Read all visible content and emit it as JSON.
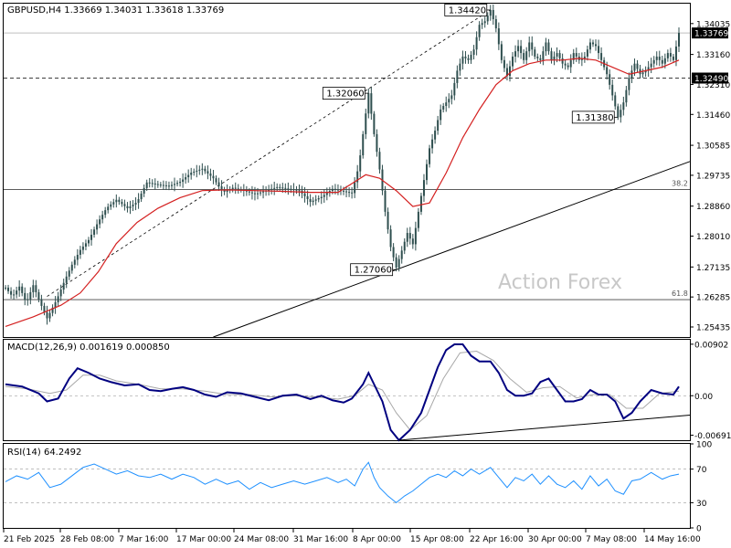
{
  "symbol_header": "GBPUSD,H4  1.33669 1.34031 1.33618 1.33769",
  "watermark": "Action Forex",
  "price_axis": {
    "ticks": [
      "1.34035",
      "1.33160",
      "1.32310",
      "1.31460",
      "1.30585",
      "1.29735",
      "1.28860",
      "1.28010",
      "1.27135",
      "1.26285",
      "1.25435"
    ],
    "tick_values": [
      1.34035,
      1.3316,
      1.3231,
      1.3146,
      1.30585,
      1.29735,
      1.2886,
      1.2801,
      1.27135,
      1.26285,
      1.25435
    ],
    "current_price": "1.33769",
    "current_value": 1.33769,
    "level_label": "1.32490",
    "level_value": 1.3249,
    "range": [
      1.2515,
      1.346
    ]
  },
  "annotations": {
    "high_1": {
      "text": "1.34420",
      "value": 1.3442
    },
    "high_2": {
      "text": "1.32060",
      "value": 1.3206
    },
    "low_1": {
      "text": "1.31380",
      "value": 1.3138
    },
    "low_2": {
      "text": "1.27060",
      "value": 1.2706
    }
  },
  "fib": {
    "fib_382": {
      "label": "38.2",
      "value": 1.2933
    },
    "fib_618": {
      "label": "61.8",
      "value": 1.2621
    }
  },
  "macd_panel": {
    "title": "MACD(12,26,9) 0.001619 0.000850",
    "ticks": [
      "0.00902",
      "0.00",
      "-0.006915"
    ],
    "tick_values": [
      0.00902,
      0.0,
      -0.006915
    ],
    "range": [
      -0.0078,
      0.0098
    ]
  },
  "rsi_panel": {
    "title": "RSI(14) 64.2492",
    "ticks": [
      "100",
      "70",
      "30",
      "0"
    ],
    "tick_values": [
      100,
      70,
      30,
      0
    ]
  },
  "time_axis": {
    "labels": [
      "21 Feb 2025",
      "28 Feb 08:00",
      "7 Mar 16:00",
      "17 Mar 00:00",
      "24 Mar 08:00",
      "31 Mar 16:00",
      "8 Apr 00:00",
      "15 Apr 08:00",
      "22 Apr 16:00",
      "30 Apr 00:00",
      "7 May 08:00",
      "14 May 16:00"
    ]
  },
  "colors": {
    "candles": "#2f4f4f",
    "moving_average": "#d42020",
    "macd_line": "#000080",
    "signal_line": "#a8a8a8",
    "rsi_line": "#1e90ff",
    "trendline": "#000000",
    "watermark": "#c8c8c8"
  },
  "chart_data": {
    "type": "candlestick",
    "symbol": "GBPUSD",
    "timeframe": "H4",
    "ohlc": {
      "open": 1.33669,
      "high": 1.34031,
      "low": 1.33618,
      "close": 1.33769
    },
    "x": [
      "21 Feb 2025",
      "28 Feb 08:00",
      "7 Mar 16:00",
      "17 Mar 00:00",
      "24 Mar 08:00",
      "31 Mar 16:00",
      "8 Apr 00:00",
      "15 Apr 08:00",
      "22 Apr 16:00",
      "30 Apr 00:00",
      "7 May 08:00",
      "14 May 16:00"
    ],
    "price_path": [
      [
        0,
        1.2655
      ],
      [
        5,
        1.263
      ],
      [
        10,
        1.2658
      ],
      [
        15,
        1.2612
      ],
      [
        20,
        1.2662
      ],
      [
        25,
        1.2612
      ],
      [
        30,
        1.2568
      ],
      [
        37,
        1.2621
      ],
      [
        43,
        1.2678
      ],
      [
        48,
        1.272
      ],
      [
        54,
        1.2762
      ],
      [
        60,
        1.279
      ],
      [
        67,
        1.2842
      ],
      [
        73,
        1.2881
      ],
      [
        80,
        1.2904
      ],
      [
        88,
        1.288
      ],
      [
        95,
        1.2898
      ],
      [
        102,
        1.2953
      ],
      [
        110,
        1.2947
      ],
      [
        118,
        1.2943
      ],
      [
        126,
        1.2955
      ],
      [
        134,
        1.2981
      ],
      [
        142,
        1.2992
      ],
      [
        150,
        1.2965
      ],
      [
        157,
        1.2925
      ],
      [
        164,
        1.2938
      ],
      [
        172,
        1.293
      ],
      [
        180,
        1.292
      ],
      [
        188,
        1.293
      ],
      [
        196,
        1.294
      ],
      [
        204,
        1.2935
      ],
      [
        212,
        1.293
      ],
      [
        220,
        1.2898
      ],
      [
        228,
        1.2912
      ],
      [
        236,
        1.2935
      ],
      [
        244,
        1.2928
      ],
      [
        250,
        1.2923
      ],
      [
        255,
        1.3
      ],
      [
        259,
        1.312
      ],
      [
        262,
        1.3206
      ],
      [
        266,
        1.309
      ],
      [
        270,
        1.299
      ],
      [
        274,
        1.287
      ],
      [
        278,
        1.277
      ],
      [
        282,
        1.2712
      ],
      [
        286,
        1.276
      ],
      [
        290,
        1.281
      ],
      [
        294,
        1.2778
      ],
      [
        298,
        1.287
      ],
      [
        302,
        1.296
      ],
      [
        306,
        1.305
      ],
      [
        310,
        1.31
      ],
      [
        314,
        1.316
      ],
      [
        318,
        1.318
      ],
      [
        322,
        1.32
      ],
      [
        326,
        1.327
      ],
      [
        330,
        1.331
      ],
      [
        334,
        1.33
      ],
      [
        338,
        1.333
      ],
      [
        342,
        1.34
      ],
      [
        346,
        1.341
      ],
      [
        350,
        1.3442
      ],
      [
        354,
        1.339
      ],
      [
        358,
        1.33
      ],
      [
        362,
        1.3255
      ],
      [
        366,
        1.331
      ],
      [
        370,
        1.334
      ],
      [
        374,
        1.33
      ],
      [
        378,
        1.335
      ],
      [
        382,
        1.331
      ],
      [
        386,
        1.33
      ],
      [
        390,
        1.335
      ],
      [
        394,
        1.33
      ],
      [
        398,
        1.332
      ],
      [
        402,
        1.329
      ],
      [
        406,
        1.328
      ],
      [
        410,
        1.332
      ],
      [
        414,
        1.33
      ],
      [
        418,
        1.331
      ],
      [
        422,
        1.335
      ],
      [
        426,
        1.334
      ],
      [
        430,
        1.33
      ],
      [
        434,
        1.326
      ],
      [
        438,
        1.32
      ],
      [
        442,
        1.3138
      ],
      [
        446,
        1.318
      ],
      [
        450,
        1.325
      ],
      [
        454,
        1.329
      ],
      [
        458,
        1.326
      ],
      [
        462,
        1.327
      ],
      [
        466,
        1.329
      ],
      [
        470,
        1.331
      ],
      [
        474,
        1.329
      ],
      [
        478,
        1.332
      ],
      [
        482,
        1.33
      ],
      [
        486,
        1.3377
      ]
    ],
    "ma_path": [
      [
        0,
        1.2545
      ],
      [
        20,
        1.2572
      ],
      [
        40,
        1.2605
      ],
      [
        54,
        1.264
      ],
      [
        67,
        1.27
      ],
      [
        80,
        1.278
      ],
      [
        95,
        1.284
      ],
      [
        110,
        1.288
      ],
      [
        126,
        1.291
      ],
      [
        142,
        1.293
      ],
      [
        160,
        1.2932
      ],
      [
        180,
        1.293
      ],
      [
        200,
        1.2928
      ],
      [
        220,
        1.2925
      ],
      [
        240,
        1.2925
      ],
      [
        250,
        1.295
      ],
      [
        260,
        1.2975
      ],
      [
        270,
        1.2965
      ],
      [
        282,
        1.293
      ],
      [
        294,
        1.2885
      ],
      [
        306,
        1.2895
      ],
      [
        318,
        1.298
      ],
      [
        330,
        1.308
      ],
      [
        342,
        1.316
      ],
      [
        354,
        1.323
      ],
      [
        366,
        1.327
      ],
      [
        378,
        1.329
      ],
      [
        390,
        1.33
      ],
      [
        402,
        1.33
      ],
      [
        414,
        1.3305
      ],
      [
        426,
        1.33
      ],
      [
        438,
        1.328
      ],
      [
        450,
        1.326
      ],
      [
        462,
        1.327
      ],
      [
        474,
        1.328
      ],
      [
        486,
        1.33
      ]
    ],
    "macd": [
      [
        0,
        0.002
      ],
      [
        12,
        0.0016
      ],
      [
        24,
        0.0004
      ],
      [
        30,
        -0.001
      ],
      [
        38,
        -0.0005
      ],
      [
        46,
        0.003
      ],
      [
        52,
        0.0048
      ],
      [
        60,
        0.004
      ],
      [
        68,
        0.003
      ],
      [
        76,
        0.0024
      ],
      [
        86,
        0.0018
      ],
      [
        96,
        0.002
      ],
      [
        104,
        0.001
      ],
      [
        112,
        0.0008
      ],
      [
        120,
        0.0012
      ],
      [
        128,
        0.0015
      ],
      [
        136,
        0.001
      ],
      [
        144,
        0.0002
      ],
      [
        152,
        -0.0002
      ],
      [
        160,
        0.0006
      ],
      [
        170,
        0.0004
      ],
      [
        180,
        -0.0002
      ],
      [
        190,
        -0.0008
      ],
      [
        200,
        0.0
      ],
      [
        210,
        0.0002
      ],
      [
        220,
        -0.0006
      ],
      [
        228,
        0.0
      ],
      [
        236,
        -0.0008
      ],
      [
        244,
        -0.0012
      ],
      [
        250,
        -0.0005
      ],
      [
        258,
        0.002
      ],
      [
        262,
        0.004
      ],
      [
        266,
        0.002
      ],
      [
        272,
        -0.001
      ],
      [
        278,
        -0.006
      ],
      [
        284,
        -0.0078
      ],
      [
        292,
        -0.006
      ],
      [
        300,
        -0.003
      ],
      [
        306,
        0.001
      ],
      [
        312,
        0.005
      ],
      [
        318,
        0.008
      ],
      [
        324,
        0.009
      ],
      [
        330,
        0.009
      ],
      [
        336,
        0.007
      ],
      [
        342,
        0.006
      ],
      [
        350,
        0.006
      ],
      [
        356,
        0.004
      ],
      [
        362,
        0.001
      ],
      [
        368,
        0.0
      ],
      [
        374,
        0.0
      ],
      [
        380,
        0.0004
      ],
      [
        386,
        0.0024
      ],
      [
        392,
        0.003
      ],
      [
        398,
        0.001
      ],
      [
        404,
        -0.001
      ],
      [
        410,
        -0.001
      ],
      [
        416,
        -0.0006
      ],
      [
        422,
        0.001
      ],
      [
        428,
        0.0002
      ],
      [
        434,
        0.0002
      ],
      [
        440,
        -0.001
      ],
      [
        446,
        -0.004
      ],
      [
        452,
        -0.003
      ],
      [
        458,
        -0.001
      ],
      [
        466,
        0.001
      ],
      [
        474,
        0.0004
      ],
      [
        482,
        0.0002
      ],
      [
        486,
        0.0016
      ]
    ],
    "signal": [
      [
        0,
        0.0016
      ],
      [
        16,
        0.0012
      ],
      [
        32,
        0.0004
      ],
      [
        44,
        0.001
      ],
      [
        56,
        0.0036
      ],
      [
        68,
        0.0036
      ],
      [
        80,
        0.0026
      ],
      [
        96,
        0.002
      ],
      [
        112,
        0.0012
      ],
      [
        128,
        0.0012
      ],
      [
        144,
        0.0008
      ],
      [
        160,
        0.0002
      ],
      [
        176,
        0.0002
      ],
      [
        192,
        -0.0002
      ],
      [
        208,
        0.0
      ],
      [
        224,
        -0.0002
      ],
      [
        240,
        -0.0006
      ],
      [
        252,
        0.0
      ],
      [
        262,
        0.002
      ],
      [
        272,
        0.001
      ],
      [
        282,
        -0.003
      ],
      [
        292,
        -0.006
      ],
      [
        304,
        -0.0035
      ],
      [
        316,
        0.003
      ],
      [
        328,
        0.0075
      ],
      [
        340,
        0.0078
      ],
      [
        352,
        0.0062
      ],
      [
        364,
        0.003
      ],
      [
        376,
        0.0006
      ],
      [
        388,
        0.0014
      ],
      [
        400,
        0.0016
      ],
      [
        412,
        -0.0004
      ],
      [
        424,
        0.0002
      ],
      [
        436,
        0.0002
      ],
      [
        448,
        -0.0022
      ],
      [
        460,
        -0.0022
      ],
      [
        472,
        0.0004
      ],
      [
        486,
        0.0008
      ]
    ],
    "rsi": [
      [
        0,
        55
      ],
      [
        8,
        62
      ],
      [
        16,
        58
      ],
      [
        24,
        66
      ],
      [
        32,
        48
      ],
      [
        40,
        52
      ],
      [
        48,
        62
      ],
      [
        56,
        72
      ],
      [
        64,
        76
      ],
      [
        72,
        70
      ],
      [
        80,
        64
      ],
      [
        88,
        68
      ],
      [
        96,
        62
      ],
      [
        104,
        60
      ],
      [
        112,
        64
      ],
      [
        120,
        58
      ],
      [
        128,
        64
      ],
      [
        136,
        60
      ],
      [
        144,
        52
      ],
      [
        152,
        58
      ],
      [
        160,
        52
      ],
      [
        168,
        56
      ],
      [
        176,
        46
      ],
      [
        184,
        54
      ],
      [
        192,
        48
      ],
      [
        200,
        52
      ],
      [
        208,
        56
      ],
      [
        216,
        52
      ],
      [
        224,
        56
      ],
      [
        232,
        60
      ],
      [
        240,
        54
      ],
      [
        246,
        58
      ],
      [
        252,
        50
      ],
      [
        258,
        70
      ],
      [
        262,
        78
      ],
      [
        266,
        60
      ],
      [
        270,
        48
      ],
      [
        276,
        38
      ],
      [
        282,
        30
      ],
      [
        288,
        38
      ],
      [
        294,
        44
      ],
      [
        300,
        52
      ],
      [
        306,
        60
      ],
      [
        312,
        64
      ],
      [
        318,
        60
      ],
      [
        324,
        68
      ],
      [
        330,
        62
      ],
      [
        336,
        70
      ],
      [
        342,
        64
      ],
      [
        350,
        72
      ],
      [
        356,
        60
      ],
      [
        362,
        48
      ],
      [
        368,
        60
      ],
      [
        374,
        56
      ],
      [
        380,
        64
      ],
      [
        386,
        52
      ],
      [
        392,
        62
      ],
      [
        398,
        52
      ],
      [
        404,
        48
      ],
      [
        410,
        56
      ],
      [
        416,
        46
      ],
      [
        422,
        62
      ],
      [
        428,
        50
      ],
      [
        434,
        58
      ],
      [
        440,
        44
      ],
      [
        446,
        40
      ],
      [
        452,
        56
      ],
      [
        458,
        58
      ],
      [
        466,
        66
      ],
      [
        474,
        58
      ],
      [
        480,
        62
      ],
      [
        486,
        64
      ]
    ],
    "xlabel": "",
    "ylabel": ""
  }
}
